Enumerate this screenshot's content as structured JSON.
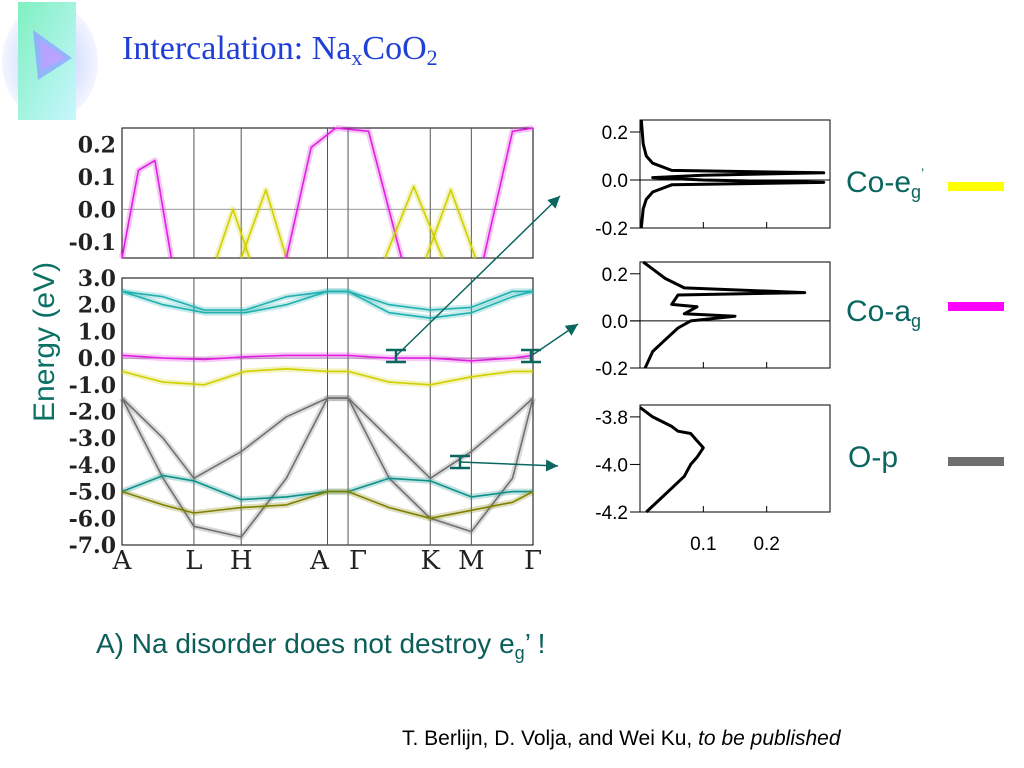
{
  "slide": {
    "title_main": "Intercalation: Na",
    "title_sub1": "x",
    "title_mid": "CoO",
    "title_sub2": "2",
    "conclusion_main": "A) Na disorder does not destroy e",
    "conclusion_sub": "g",
    "conclusion_end": "’ !",
    "credit_authors": "T. Berlijn, D. Volja, and Wei Ku,",
    "credit_italic": "to be published"
  },
  "legend": [
    {
      "label": "Co-e",
      "sub": "g",
      "sup": "’",
      "color": "#ffff00"
    },
    {
      "label": "Co-a",
      "sub": "g",
      "sup": "",
      "color": "#ff00ff"
    },
    {
      "label": "O-p",
      "sub": "",
      "sup": "",
      "color": "#6e6e6e"
    }
  ],
  "colors": {
    "title": "#1f3fd6",
    "text": "#0b6660",
    "arrow": "#0b6660"
  },
  "chart_data": [
    {
      "type": "line",
      "name": "band structure (zoom near Fermi level)",
      "ylabel": "Energy (eV)",
      "ylim": [
        -0.15,
        0.25
      ],
      "yticks": [
        "0.2",
        "0.1",
        "0.0",
        "-0.1"
      ],
      "ytick_values": [
        0.2,
        0.1,
        0.0,
        -0.1
      ],
      "k_labels": [
        "A",
        "L",
        "H",
        "A",
        "Γ",
        "K",
        "M",
        "Γ"
      ],
      "k_positions": [
        0,
        0.175,
        0.29,
        0.5,
        0.55,
        0.75,
        0.85,
        1.0
      ],
      "series": [
        {
          "color": "#e020e0",
          "x": [
            0,
            0.04,
            0.08,
            0.12
          ],
          "y": [
            -0.15,
            0.12,
            0.15,
            -0.15
          ]
        },
        {
          "color": "#d0d000",
          "x": [
            0.23,
            0.27,
            0.31
          ],
          "y": [
            -0.15,
            0.0,
            -0.15
          ]
        },
        {
          "color": "#d0d000",
          "x": [
            0.29,
            0.35,
            0.4
          ],
          "y": [
            -0.15,
            0.06,
            -0.15
          ]
        },
        {
          "color": "#e020e0",
          "x": [
            0.4,
            0.46,
            0.52
          ],
          "y": [
            -0.15,
            0.19,
            0.25
          ]
        },
        {
          "color": "#e020e0",
          "x": [
            0.52,
            0.6,
            0.68
          ],
          "y": [
            0.25,
            0.24,
            -0.15
          ]
        },
        {
          "color": "#d0d000",
          "x": [
            0.64,
            0.71,
            0.78
          ],
          "y": [
            -0.15,
            0.07,
            -0.15
          ]
        },
        {
          "color": "#d0d000",
          "x": [
            0.74,
            0.8,
            0.86
          ],
          "y": [
            -0.15,
            0.06,
            -0.15
          ]
        },
        {
          "color": "#e020e0",
          "x": [
            0.88,
            0.95,
            1.0
          ],
          "y": [
            -0.15,
            0.24,
            0.25
          ]
        }
      ]
    },
    {
      "type": "line",
      "name": "band structure",
      "ylim": [
        -7.0,
        3.0
      ],
      "yticks": [
        "3.0",
        "2.0",
        "1.0",
        "0.0",
        "-1.0",
        "-2.0",
        "-3.0",
        "-4.0",
        "-5.0",
        "-6.0",
        "-7.0"
      ],
      "ytick_values": [
        3,
        2,
        1,
        0,
        -1,
        -2,
        -3,
        -4,
        -5,
        -6,
        -7
      ],
      "k_labels": [
        "A",
        "L",
        "H",
        "A",
        "Γ",
        "K",
        "M",
        "Γ"
      ],
      "k_positions": [
        0,
        0.175,
        0.29,
        0.5,
        0.55,
        0.75,
        0.85,
        1.0
      ],
      "series": [
        {
          "color": "#20b0b0",
          "x": [
            0,
            0.1,
            0.2,
            0.3,
            0.4,
            0.5,
            0.55,
            0.65,
            0.75,
            0.85,
            0.95,
            1.0
          ],
          "y": [
            2.5,
            2.3,
            1.8,
            1.8,
            2.3,
            2.5,
            2.5,
            2.0,
            1.8,
            1.9,
            2.5,
            2.5
          ]
        },
        {
          "color": "#20b0b0",
          "x": [
            0,
            0.1,
            0.2,
            0.3,
            0.4,
            0.5,
            0.55,
            0.65,
            0.75,
            0.85,
            0.95,
            1.0
          ],
          "y": [
            2.5,
            2.0,
            1.7,
            1.7,
            2.0,
            2.5,
            2.5,
            1.7,
            1.5,
            1.7,
            2.3,
            2.5
          ]
        },
        {
          "color": "#e020e0",
          "x": [
            0,
            0.1,
            0.2,
            0.3,
            0.4,
            0.5,
            0.55,
            0.65,
            0.75,
            0.85,
            0.95,
            1.0
          ],
          "y": [
            0.1,
            0.0,
            -0.05,
            0.05,
            0.1,
            0.1,
            0.1,
            0.0,
            0.0,
            -0.1,
            0.0,
            0.1
          ]
        },
        {
          "color": "#d0d000",
          "x": [
            0,
            0.1,
            0.2,
            0.3,
            0.4,
            0.5,
            0.55,
            0.65,
            0.75,
            0.85,
            0.95,
            1.0
          ],
          "y": [
            -0.5,
            -0.9,
            -1.0,
            -0.5,
            -0.4,
            -0.5,
            -0.5,
            -0.9,
            -1.0,
            -0.7,
            -0.5,
            -0.5
          ]
        },
        {
          "color": "#707070",
          "x": [
            0,
            0.1,
            0.175,
            0.29,
            0.4,
            0.5,
            0.55,
            0.65,
            0.75,
            0.85,
            0.95,
            1.0
          ],
          "y": [
            -1.5,
            -3.0,
            -4.5,
            -3.5,
            -2.2,
            -1.5,
            -1.5,
            -3.0,
            -4.5,
            -3.5,
            -2.2,
            -1.5
          ]
        },
        {
          "color": "#707070",
          "x": [
            0,
            0.1,
            0.175,
            0.29,
            0.4,
            0.5,
            0.55,
            0.65,
            0.75,
            0.85,
            0.95,
            1.0
          ],
          "y": [
            -1.5,
            -4.5,
            -6.3,
            -6.7,
            -4.5,
            -1.5,
            -1.5,
            -4.5,
            -6.0,
            -6.5,
            -4.5,
            -1.5
          ]
        },
        {
          "color": "#10908a",
          "x": [
            0,
            0.1,
            0.175,
            0.29,
            0.4,
            0.5,
            0.55,
            0.65,
            0.75,
            0.85,
            0.95,
            1.0
          ],
          "y": [
            -5.0,
            -4.4,
            -4.6,
            -5.3,
            -5.2,
            -5.0,
            -5.0,
            -4.5,
            -4.6,
            -5.2,
            -5.0,
            -5.0
          ]
        },
        {
          "color": "#808000",
          "x": [
            0,
            0.1,
            0.175,
            0.29,
            0.4,
            0.5,
            0.55,
            0.65,
            0.75,
            0.85,
            0.95,
            1.0
          ],
          "y": [
            -5.0,
            -5.5,
            -5.8,
            -5.6,
            -5.5,
            -5.0,
            -5.0,
            -5.6,
            -6.0,
            -5.7,
            -5.4,
            -5.0
          ]
        }
      ]
    },
    {
      "type": "line",
      "name": "Co-eg' DOS",
      "ylim": [
        -0.2,
        0.25
      ],
      "yticks": [
        "0.2",
        "0.0",
        "-0.2"
      ],
      "ytick_values": [
        0.2,
        0.0,
        -0.2
      ],
      "xlim": [
        0,
        0.3
      ],
      "x": [
        0.002,
        0.005,
        0.01,
        0.02,
        0.05,
        0.29,
        0.1,
        0.02,
        0.1,
        0.29,
        0.05,
        0.02,
        0.01,
        0.005,
        0.002
      ],
      "y": [
        0.25,
        0.15,
        0.1,
        0.07,
        0.04,
        0.03,
        0.02,
        0.01,
        0.0,
        -0.01,
        -0.02,
        -0.05,
        -0.08,
        -0.12,
        -0.2
      ]
    },
    {
      "type": "line",
      "name": "Co-ag DOS",
      "ylim": [
        -0.2,
        0.25
      ],
      "yticks": [
        "0.2",
        "0.0",
        "-0.2"
      ],
      "ytick_values": [
        0.2,
        0.0,
        -0.2
      ],
      "xlim": [
        0,
        0.3
      ],
      "x": [
        0.005,
        0.02,
        0.04,
        0.07,
        0.26,
        0.06,
        0.05,
        0.09,
        0.07,
        0.15,
        0.08,
        0.06,
        0.04,
        0.02,
        0.008
      ],
      "y": [
        0.25,
        0.22,
        0.18,
        0.14,
        0.12,
        0.11,
        0.07,
        0.06,
        0.03,
        0.02,
        0.0,
        -0.03,
        -0.08,
        -0.13,
        -0.2
      ]
    },
    {
      "type": "line",
      "name": "O-p DOS",
      "ylim": [
        -4.2,
        -3.75
      ],
      "yticks": [
        "-3.8",
        "-4.0",
        "-4.2"
      ],
      "ytick_values": [
        -3.8,
        -4.0,
        -4.2
      ],
      "xlim": [
        0,
        0.3
      ],
      "xticks": [
        "0.1",
        "0.2"
      ],
      "xtick_values": [
        0.1,
        0.2
      ],
      "x": [
        0.0,
        0.02,
        0.05,
        0.06,
        0.08,
        0.09,
        0.1,
        0.09,
        0.08,
        0.07,
        0.05,
        0.03,
        0.01
      ],
      "y": [
        -3.76,
        -3.8,
        -3.84,
        -3.86,
        -3.87,
        -3.9,
        -3.93,
        -3.97,
        -4.0,
        -4.05,
        -4.1,
        -4.15,
        -4.2
      ]
    }
  ]
}
